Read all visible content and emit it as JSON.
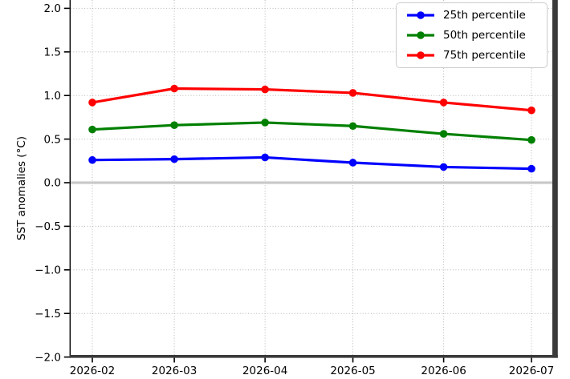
{
  "chart_data": {
    "type": "line",
    "title": "",
    "xlabel": "",
    "ylabel": "SST anomalies (°C)",
    "x_tick_labels": [
      "2026-02",
      "2026-03",
      "2026-04",
      "2026-05",
      "2026-06",
      "2026-07"
    ],
    "x_day_offsets": [
      0,
      28,
      59,
      89,
      120,
      150
    ],
    "y_ticks": [
      2.0,
      1.5,
      1.0,
      0.5,
      0.0,
      -0.5,
      -1.0,
      -1.5,
      -2.0
    ],
    "y_tick_labels": [
      "2.0",
      "1.5",
      "1.0",
      "0.5",
      "0.0",
      "−0.5",
      "−1.0",
      "−1.5",
      "−2.0"
    ],
    "ylim": [
      -2.0,
      2.1
    ],
    "grid": true,
    "grid_style": "dotted",
    "legend_position": "upper right",
    "series": [
      {
        "name": "25th percentile",
        "color": "#0000ff",
        "values": [
          0.26,
          0.27,
          0.29,
          0.23,
          0.18,
          0.16
        ]
      },
      {
        "name": "50th percentile",
        "color": "#008000",
        "values": [
          0.61,
          0.66,
          0.69,
          0.65,
          0.56,
          0.49
        ]
      },
      {
        "name": "75th percentile",
        "color": "#ff0000",
        "values": [
          0.92,
          1.08,
          1.07,
          1.03,
          0.92,
          0.83
        ]
      }
    ],
    "colors": {
      "grid": "#b5b5b5",
      "zero_line": "#c9c9c9",
      "spine_dark": "#3a3a3a",
      "spine_left": "#000000",
      "tick": "#000000",
      "text": "#000000"
    }
  }
}
